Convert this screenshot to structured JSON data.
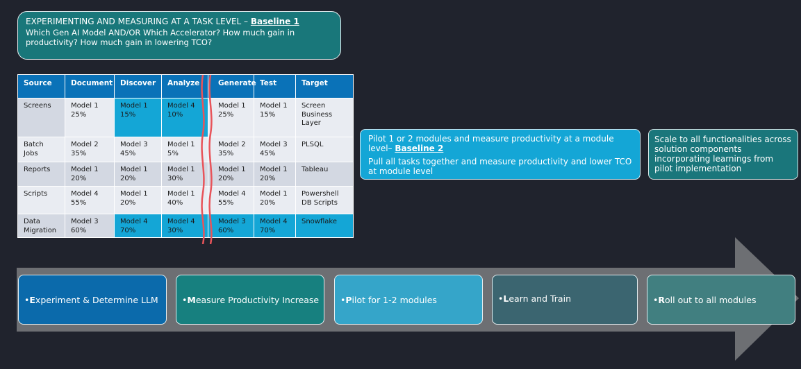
{
  "title": {
    "main": "EXPERIMENTING AND MEASURING AT A TASK LEVEL –",
    "link": "Baseline 1",
    "subtitle": "Which Gen AI Model AND/OR Which Accelerator? How much gain in productivity? How much gain in lowering TCO?"
  },
  "table": {
    "headers": [
      "Source",
      "Document",
      "Discover",
      "Analyze",
      "Generate",
      "Test",
      "Target"
    ],
    "rows": [
      [
        "Screens",
        "Model 1\n25%",
        "Model 1\n15%",
        "Model 4\n10%",
        "Model 1\n25%",
        "Model 1\n15%",
        "Screen\nBusiness\nLayer"
      ],
      [
        "Batch\nJobs",
        "Model 2\n35%",
        "Model 3\n45%",
        "Model 1\n5%",
        "Model 2\n35%",
        "Model 3\n45%",
        "PLSQL"
      ],
      [
        "Reports",
        "Model 1\n20%",
        "Model 1\n20%",
        "Model 1\n30%",
        "Model 1\n20%",
        "Model 1\n20%",
        "Tableau"
      ],
      [
        "Scripts",
        "Model 4\n55%",
        "Model 1\n20%",
        "Model 1\n40%",
        "Model 4\n55%",
        "Model 1\n20%",
        "Powershell\nDB Scripts"
      ],
      [
        "Data\nMigration",
        "Model 3\n60%",
        "Model 4\n70%",
        "Model 4\n30%",
        "Model 3\n60%",
        "Model 4\n70%",
        "Snowflake"
      ]
    ]
  },
  "pilot": {
    "line1": "Pilot 1 or 2 modules and measure productivity at a module level–",
    "link": "Baseline 2",
    "line2": "Pull all tasks together and measure productivity and lower TCO at module level"
  },
  "scale": {
    "text": "Scale to all functionalities across solution components incorporating learnings from pilot implementation"
  },
  "steps": [
    {
      "bullet": "•",
      "initial": "E",
      "rest": "xperiment & Determine LLM",
      "color": "#0b6aab"
    },
    {
      "bullet": "•",
      "initial": "M",
      "rest": "easure Productivity Increase",
      "color": "#17807f"
    },
    {
      "bullet": "•",
      "initial": "P",
      "rest": "ilot for 1-2 modules",
      "color": "#35a5c9"
    },
    {
      "bullet": "•",
      "initial": "L",
      "rest": "earn and Train",
      "color": "#3b6570"
    },
    {
      "bullet": "•",
      "initial": "R",
      "rest": "oll out to all modules",
      "color": "#417f80"
    }
  ],
  "colors": {
    "background": "#20232d",
    "arrow": "#6d6f73",
    "header": "#0a72b8",
    "highlight": "#14a6d6",
    "squiggle": "#e8545a"
  }
}
